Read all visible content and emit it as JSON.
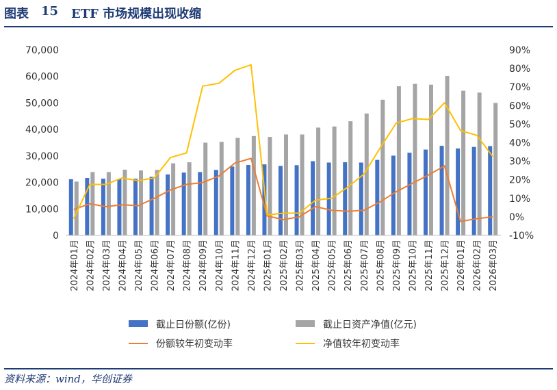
{
  "header": {
    "prefix": "图表",
    "number": "15",
    "title": "ETF 市场规模出现收缩"
  },
  "footer": {
    "source": "资料来源：wind，华创证券"
  },
  "colors": {
    "bar_units": "#4472c4",
    "bar_nav": "#a5a5a5",
    "line_units": "#ed7d31",
    "line_nav": "#ffc000",
    "title": "#1f3b74"
  },
  "chart_data": {
    "type": "bar",
    "categories": [
      "2024年01月",
      "2024年02月",
      "2024年03月",
      "2024年04月",
      "2024年05月",
      "2024年06月",
      "2024年07月",
      "2024年08月",
      "2024年09月",
      "2024年10月",
      "2024年11月",
      "2024年12月",
      "2025年01月",
      "2025年02月",
      "2025年03月",
      "2025年04月",
      "2025年05月",
      "2025年06月",
      "2025年07月",
      "2025年08月",
      "2025年09月",
      "2025年10月",
      "2025年11月",
      "2025年12月",
      "2026年01月",
      "2026年02月",
      "2026年03月"
    ],
    "left_axis": {
      "min": 0,
      "max": 70000,
      "step": 10000,
      "tick_labels": [
        "0",
        "10,000",
        "20,000",
        "30,000",
        "40,000",
        "50,000",
        "60,000",
        "70,000"
      ]
    },
    "right_axis": {
      "min": -10,
      "max": 90,
      "step": 10,
      "tick_labels": [
        "-10%",
        "0%",
        "10%",
        "20%",
        "30%",
        "40%",
        "50%",
        "60%",
        "70%",
        "80%",
        "90%"
      ]
    },
    "grid": false,
    "legend_position": "bottom",
    "series": [
      {
        "name": "截止日份额(亿份)",
        "type": "bar",
        "axis": "left",
        "values": [
          21200,
          21700,
          21400,
          21300,
          21400,
          22100,
          23000,
          23700,
          23900,
          24700,
          26000,
          26600,
          26800,
          26200,
          26500,
          28000,
          27500,
          27600,
          27500,
          28500,
          30100,
          31200,
          32400,
          33800,
          32800,
          33400,
          33700
        ]
      },
      {
        "name": "截止日资产净值(亿元)",
        "type": "bar",
        "axis": "left",
        "values": [
          20300,
          23900,
          23900,
          24800,
          24500,
          24700,
          27200,
          27600,
          35000,
          35300,
          36800,
          37500,
          37200,
          38100,
          38100,
          40700,
          41100,
          43100,
          46000,
          51200,
          56300,
          57200,
          56900,
          60200,
          54600,
          53900,
          50000
        ]
      },
      {
        "name": "份额较年初变动率",
        "type": "line",
        "axis": "right",
        "values": [
          4,
          7,
          5.5,
          6.5,
          6,
          10,
          14.5,
          17.5,
          18.5,
          22,
          29,
          31.5,
          0.5,
          -1.5,
          0,
          5.5,
          3.5,
          3,
          3.5,
          8,
          13.5,
          18,
          22.5,
          27.5,
          -2.5,
          -1,
          0
        ]
      },
      {
        "name": "净值较年初变动率",
        "type": "line",
        "axis": "right",
        "values": [
          -1,
          17.5,
          17.5,
          21,
          19.5,
          21,
          32,
          34.5,
          70.5,
          72,
          79,
          82,
          1,
          2,
          2,
          9,
          10,
          16,
          23,
          37,
          50.5,
          53,
          52.5,
          61.5,
          46.5,
          44,
          32.5
        ]
      }
    ]
  }
}
